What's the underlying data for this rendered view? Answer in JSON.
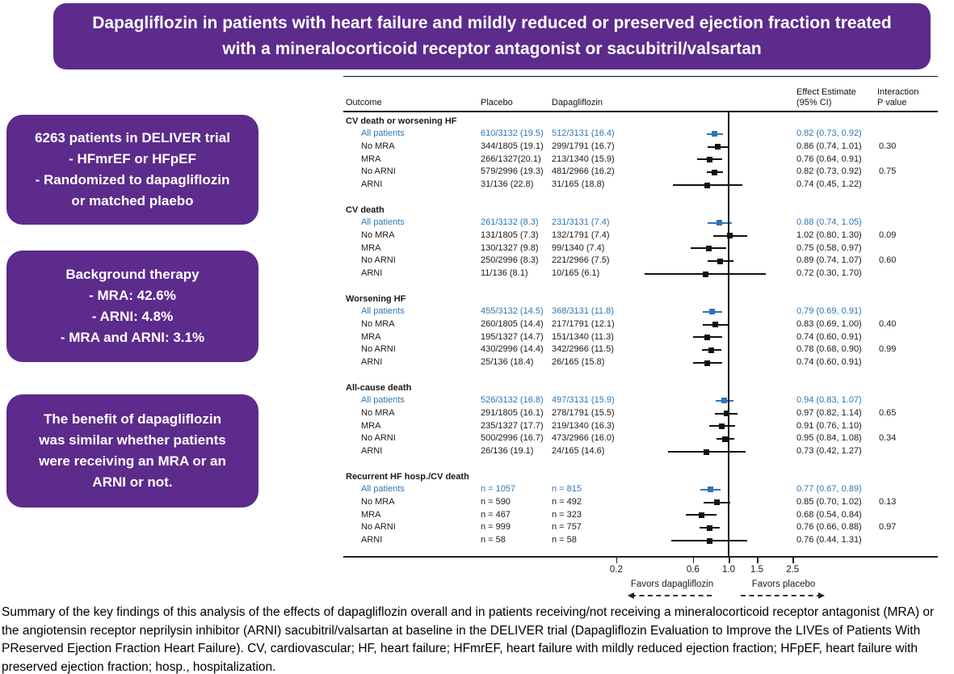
{
  "banner": {
    "title": "Dapagliflozin in patients with heart failure and mildly reduced or preserved ejection fraction treated with a mineralocorticoid receptor antagonist or sacubitril/valsartan"
  },
  "info_boxes": [
    {
      "text": "6263 patients in DELIVER trial\n-      HFmrEF or HFpEF\n-   Randomized to dapagliflozin\nor matched plaebo"
    },
    {
      "text": "Background therapy\n-      MRA: 42.6%\n-      ARNI: 4.8%\n-    MRA and ARNI: 3.1%"
    },
    {
      "text": "The benefit of dapagliflozin\nwas similar whether patients\nwere receiving an MRA or an\nARNI  or not."
    }
  ],
  "columns": {
    "outcome": "Outcome",
    "placebo": "Placebo",
    "dapagliflozin": "Dapagliflozin",
    "effect": "Effect Estimate\n(95% CI)",
    "interaction": "Interaction\nP value"
  },
  "chart_data": {
    "type": "scatter",
    "subtype": "forest-plot",
    "axis": {
      "scale": "log",
      "ticks": [
        0.2,
        0.6,
        1.0,
        1.5,
        2.5
      ],
      "tick_labels": [
        "0.2",
        "0.6",
        "1.0",
        "1.5",
        "2.5"
      ],
      "reference_line": 1.0,
      "xlim": [
        0.15,
        3.6
      ],
      "favors_left": "Favors dapagliflozin",
      "favors_right": "Favors placebo"
    },
    "sections": [
      {
        "outcome": "CV death or worsening HF",
        "rows": [
          {
            "label": "All patients",
            "placebo": "610/3132 (19.5)",
            "dapagliflozin": "512/3131 (16.4)",
            "effect": "0.82 (0.73, 0.92)",
            "est": 0.82,
            "lo": 0.73,
            "hi": 0.92,
            "p_interaction": "",
            "highlight": true
          },
          {
            "label": "No MRA",
            "placebo": "344/1805 (19.1)",
            "dapagliflozin": "299/1791 (16.7)",
            "effect": "0.86 (0.74, 1.01)",
            "est": 0.86,
            "lo": 0.74,
            "hi": 1.01,
            "p_interaction": "0.30",
            "highlight": false
          },
          {
            "label": "MRA",
            "placebo": "266/1327(20.1)",
            "dapagliflozin": "213/1340 (15.9)",
            "effect": "0.76 (0.64, 0.91)",
            "est": 0.76,
            "lo": 0.64,
            "hi": 0.91,
            "p_interaction": "",
            "highlight": false
          },
          {
            "label": "No ARNI",
            "placebo": "579/2996 (19.3)",
            "dapagliflozin": "481/2966 (16.2)",
            "effect": "0.82 (0.73, 0.92)",
            "est": 0.82,
            "lo": 0.73,
            "hi": 0.92,
            "p_interaction": "0.75",
            "highlight": false
          },
          {
            "label": "ARNI",
            "placebo": "31/136 (22.8)",
            "dapagliflozin": "31/165 (18.8)",
            "effect": "0.74 (0.45, 1.22)",
            "est": 0.74,
            "lo": 0.45,
            "hi": 1.22,
            "p_interaction": "",
            "highlight": false
          }
        ]
      },
      {
        "outcome": "CV death",
        "rows": [
          {
            "label": "All patients",
            "placebo": "261/3132 (8.3)",
            "dapagliflozin": "231/3131 (7.4)",
            "effect": "0.88 (0.74, 1.05)",
            "est": 0.88,
            "lo": 0.74,
            "hi": 1.05,
            "p_interaction": "",
            "highlight": true
          },
          {
            "label": "No MRA",
            "placebo": "131/1805 (7.3)",
            "dapagliflozin": "132/1791 (7.4)",
            "effect": "1.02 (0.80, 1.30)",
            "est": 1.02,
            "lo": 0.8,
            "hi": 1.3,
            "p_interaction": "0.09",
            "highlight": false
          },
          {
            "label": "MRA",
            "placebo": "130/1327 (9.8)",
            "dapagliflozin": "99/1340 (7.4)",
            "effect": "0.75 (0.58, 0.97)",
            "est": 0.75,
            "lo": 0.58,
            "hi": 0.97,
            "p_interaction": "",
            "highlight": false
          },
          {
            "label": "No ARNI",
            "placebo": "250/2996 (8.3)",
            "dapagliflozin": "221/2966 (7.5)",
            "effect": "0.89 (0.74, 1.07)",
            "est": 0.89,
            "lo": 0.74,
            "hi": 1.07,
            "p_interaction": "0.60",
            "highlight": false
          },
          {
            "label": "ARNI",
            "placebo": "11/136 (8.1)",
            "dapagliflozin": "10/165 (6.1)",
            "effect": "0.72 (0.30, 1.70)",
            "est": 0.72,
            "lo": 0.3,
            "hi": 1.7,
            "p_interaction": "",
            "highlight": false
          }
        ]
      },
      {
        "outcome": "Worsening HF",
        "rows": [
          {
            "label": "All patients",
            "placebo": "455/3132 (14.5)",
            "dapagliflozin": "368/3131 (11.8)",
            "effect": "0.79 (0.69, 0.91)",
            "est": 0.79,
            "lo": 0.69,
            "hi": 0.91,
            "p_interaction": "",
            "highlight": true
          },
          {
            "label": "No MRA",
            "placebo": "260/1805 (14.4)",
            "dapagliflozin": "217/1791 (12.1)",
            "effect": "0.83 (0.69, 1.00)",
            "est": 0.83,
            "lo": 0.69,
            "hi": 1.0,
            "p_interaction": "0.40",
            "highlight": false
          },
          {
            "label": "MRA",
            "placebo": "195/1327 (14.7)",
            "dapagliflozin": "151/1340 (11.3)",
            "effect": "0.74 (0.60, 0.91)",
            "est": 0.74,
            "lo": 0.6,
            "hi": 0.91,
            "p_interaction": "",
            "highlight": false
          },
          {
            "label": "No ARNI",
            "placebo": "430/2996 (14.4)",
            "dapagliflozin": "342/2966 (11.5)",
            "effect": "0.78 (0.68, 0.90)",
            "est": 0.78,
            "lo": 0.68,
            "hi": 0.9,
            "p_interaction": "0.99",
            "highlight": false
          },
          {
            "label": "ARNI",
            "placebo": "25/136 (18.4)",
            "dapagliflozin": "26/165 (15.8)",
            "effect": "0.74 (0.60, 0.91)",
            "est": 0.74,
            "lo": 0.6,
            "hi": 0.91,
            "p_interaction": "",
            "highlight": false
          }
        ]
      },
      {
        "outcome": "All-cause death",
        "rows": [
          {
            "label": "All patients",
            "placebo": "526/3132 (16.8)",
            "dapagliflozin": "497/3131 (15.9)",
            "effect": "0.94 (0.83, 1.07)",
            "est": 0.94,
            "lo": 0.83,
            "hi": 1.07,
            "p_interaction": "",
            "highlight": true
          },
          {
            "label": "No MRA",
            "placebo": "291/1805 (16.1)",
            "dapagliflozin": "278/1791 (15.5)",
            "effect": "0.97 (0.82, 1.14)",
            "est": 0.97,
            "lo": 0.82,
            "hi": 1.14,
            "p_interaction": "0.65",
            "highlight": false
          },
          {
            "label": "MRA",
            "placebo": "235/1327 (17.7)",
            "dapagliflozin": "219/1340 (16.3)",
            "effect": "0.91 (0.76, 1.10)",
            "est": 0.91,
            "lo": 0.76,
            "hi": 1.1,
            "p_interaction": "",
            "highlight": false
          },
          {
            "label": "No ARNI",
            "placebo": "500/2996 (16.7)",
            "dapagliflozin": "473/2966 (16.0)",
            "effect": "0.95 (0.84, 1.08)",
            "est": 0.95,
            "lo": 0.84,
            "hi": 1.08,
            "p_interaction": "0.34",
            "highlight": false
          },
          {
            "label": "ARNI",
            "placebo": "26/136 (19.1)",
            "dapagliflozin": "24/165 (14.6)",
            "effect": "0.73 (0.42, 1.27)",
            "est": 0.73,
            "lo": 0.42,
            "hi": 1.27,
            "p_interaction": "",
            "highlight": false
          }
        ]
      },
      {
        "outcome": "Recurrent HF hosp./CV death",
        "rows": [
          {
            "label": "All patients",
            "placebo": "n = 1057",
            "dapagliflozin": "n = 815",
            "effect": "0.77 (0.67, 0.89)",
            "est": 0.77,
            "lo": 0.67,
            "hi": 0.89,
            "p_interaction": "",
            "highlight": true
          },
          {
            "label": "No MRA",
            "placebo": "n = 590",
            "dapagliflozin": "n = 492",
            "effect": "0.85 (0.70, 1.02)",
            "est": 0.85,
            "lo": 0.7,
            "hi": 1.02,
            "p_interaction": "0.13",
            "highlight": false
          },
          {
            "label": "MRA",
            "placebo": "n = 467",
            "dapagliflozin": "n = 323",
            "effect": "0.68 (0.54, 0.84)",
            "est": 0.68,
            "lo": 0.54,
            "hi": 0.84,
            "p_interaction": "",
            "highlight": false
          },
          {
            "label": "No ARNI",
            "placebo": "n = 999",
            "dapagliflozin": "n = 757",
            "effect": "0.76 (0.66, 0.88)",
            "est": 0.76,
            "lo": 0.66,
            "hi": 0.88,
            "p_interaction": "0.97",
            "highlight": false
          },
          {
            "label": "ARNI",
            "placebo": "n = 58",
            "dapagliflozin": "n = 58",
            "effect": "0.76 (0.44, 1.31)",
            "est": 0.76,
            "lo": 0.44,
            "hi": 1.31,
            "p_interaction": "",
            "highlight": false
          }
        ]
      }
    ]
  },
  "footer": {
    "text": "Summary of the key findings of this analysis of the effects of dapagliflozin overall and in patients receiving/not receiving a mineralocorticoid receptor antagonist (MRA) or the angiotensin receptor neprilysin inhibitor (ARNI) sacubitril/valsartan at baseline in the DELIVER trial (Dapagliflozin Evaluation to Improve the LIVEs of Patients With PReserved Ejection Fraction Heart Failure). CV, cardiovascular; HF, heart failure; HFmrEF, heart failure with mildly reduced ejection fraction; HFpEF, heart failure with preserved ejection fraction; hosp., hospitalization."
  },
  "colors": {
    "purple": "#5C2B8C",
    "blue": "#2E75B6",
    "marker_black": "#111111"
  }
}
